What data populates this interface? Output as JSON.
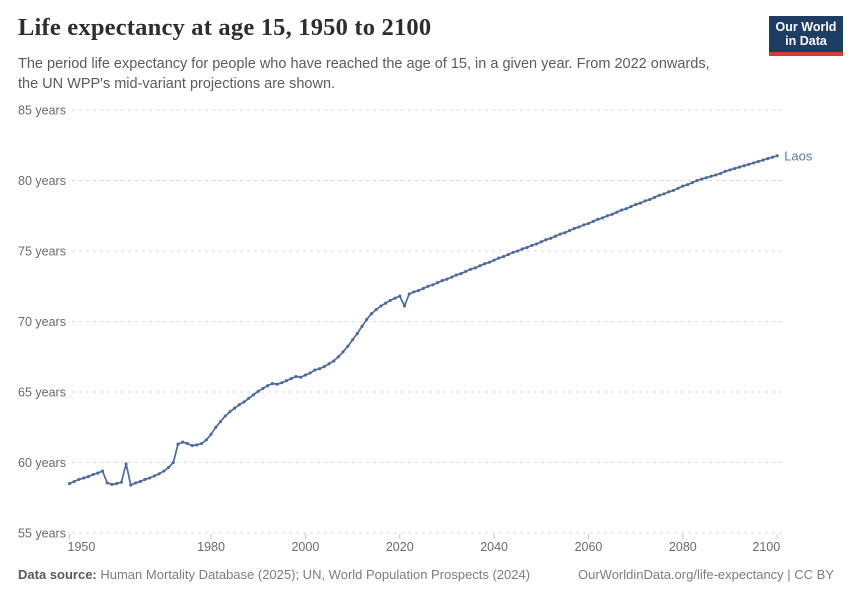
{
  "header": {
    "title": "Life expectancy at age 15, 1950 to 2100",
    "subtitle": "The period life expectancy for people who have reached the age of 15, in a given year. From 2022 onwards, the UN WPP's mid-variant projections are shown.",
    "logo": {
      "line1": "Our World",
      "line2": "in Data",
      "bg": "#1d3d63",
      "accent": "#d93a34"
    }
  },
  "footer": {
    "source_label": "Data source:",
    "source_text": " Human Mortality Database (2025); UN, World Population Prospects (2024)",
    "link_text": "OurWorldinData.org/life-expectancy | CC BY"
  },
  "chart_data": {
    "type": "line",
    "title": "Life expectancy at age 15, 1950 to 2100",
    "xlabel": "",
    "ylabel": "",
    "xlim": [
      1950,
      2100
    ],
    "ylim": [
      55,
      85
    ],
    "grid": "horizontal-dashed",
    "legend_position": "end-of-line-label",
    "x_ticks": [
      1950,
      1980,
      2000,
      2020,
      2040,
      2060,
      2080,
      2100
    ],
    "x_tick_labels": [
      "1950",
      "1980",
      "2000",
      "2020",
      "2040",
      "2060",
      "2080",
      "2100"
    ],
    "y_ticks": [
      55,
      60,
      65,
      70,
      75,
      80,
      85
    ],
    "y_tick_labels": [
      "55 years",
      "60 years",
      "65 years",
      "70 years",
      "75 years",
      "80 years",
      "85 years"
    ],
    "projection_from": 2022,
    "series": [
      {
        "name": "Laos",
        "color": "#4C6A9C",
        "label_color": "#5d79a7",
        "x_start": 1950,
        "x_step": 1,
        "values": [
          58.5,
          58.65,
          58.8,
          58.9,
          59.0,
          59.15,
          59.25,
          59.4,
          58.55,
          58.45,
          58.5,
          58.6,
          59.9,
          58.4,
          58.55,
          58.65,
          58.8,
          58.9,
          59.05,
          59.2,
          59.4,
          59.65,
          60.0,
          61.3,
          61.45,
          61.35,
          61.2,
          61.25,
          61.35,
          61.6,
          62.0,
          62.5,
          62.9,
          63.3,
          63.6,
          63.85,
          64.1,
          64.3,
          64.55,
          64.8,
          65.05,
          65.25,
          65.45,
          65.6,
          65.55,
          65.65,
          65.8,
          65.95,
          66.1,
          66.05,
          66.2,
          66.35,
          66.55,
          66.65,
          66.8,
          67.0,
          67.2,
          67.5,
          67.85,
          68.25,
          68.7,
          69.15,
          69.65,
          70.15,
          70.55,
          70.85,
          71.1,
          71.3,
          71.5,
          71.65,
          71.8,
          71.1,
          71.95,
          72.1,
          72.2,
          72.35,
          72.5,
          72.6,
          72.75,
          72.9,
          73.0,
          73.15,
          73.3,
          73.4,
          73.55,
          73.7,
          73.8,
          73.95,
          74.1,
          74.2,
          74.35,
          74.5,
          74.6,
          74.75,
          74.9,
          75.0,
          75.15,
          75.25,
          75.4,
          75.5,
          75.65,
          75.8,
          75.9,
          76.05,
          76.2,
          76.3,
          76.45,
          76.6,
          76.7,
          76.85,
          76.95,
          77.1,
          77.25,
          77.35,
          77.5,
          77.6,
          77.75,
          77.9,
          78.0,
          78.15,
          78.3,
          78.4,
          78.55,
          78.65,
          78.8,
          78.95,
          79.05,
          79.2,
          79.3,
          79.45,
          79.6,
          79.7,
          79.85,
          80.0,
          80.1,
          80.2,
          80.3,
          80.4,
          80.5,
          80.65,
          80.75,
          80.85,
          80.95,
          81.05,
          81.15,
          81.25,
          81.35,
          81.45,
          81.55,
          81.65,
          81.75
        ]
      }
    ]
  }
}
